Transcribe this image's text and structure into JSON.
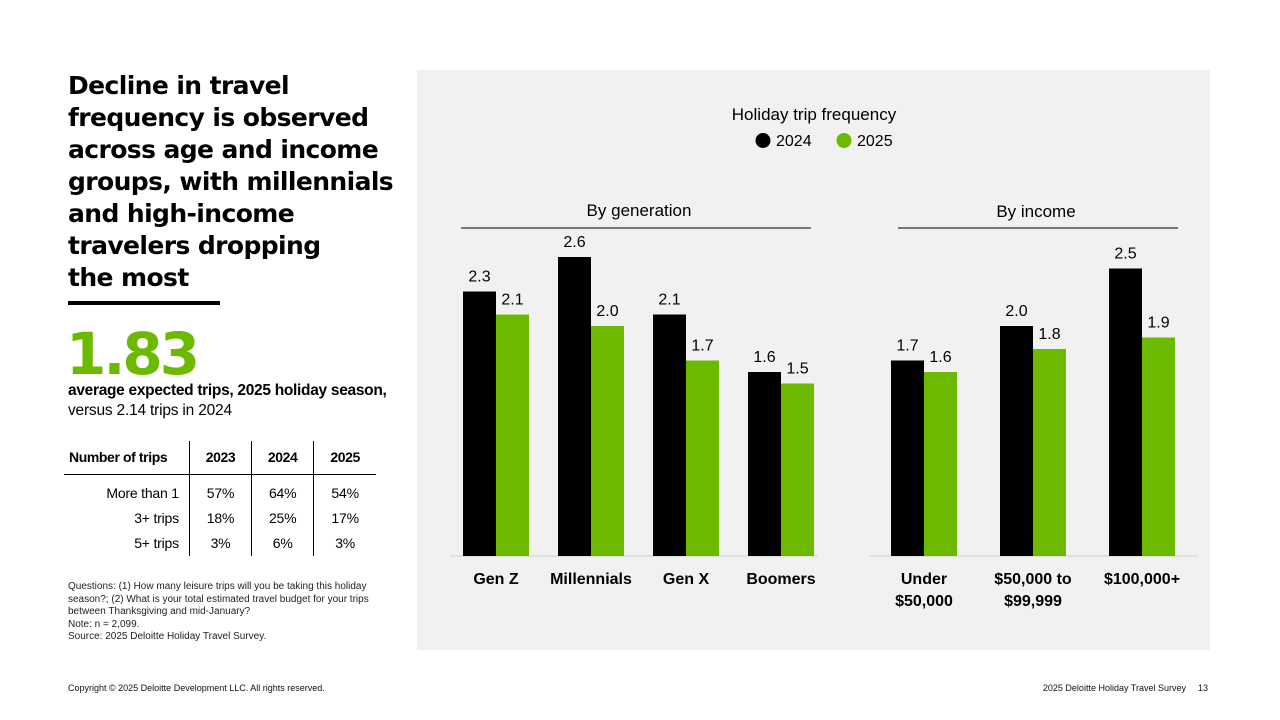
{
  "headline": {
    "lines": [
      "Decline in travel",
      "frequency is observed",
      "across age and income",
      "groups, with millennials",
      "and high-income",
      "travelers dropping",
      "the most"
    ]
  },
  "stat": {
    "value": "1.83",
    "line1": "average expected trips, 2025 holiday season,",
    "line2": "versus 2.14 trips in 2024"
  },
  "trip_table": {
    "headers": [
      "Number of trips",
      "2023",
      "2024",
      "2025"
    ],
    "rows": [
      [
        "More than 1",
        "57%",
        "64%",
        "54%"
      ],
      [
        "3+ trips",
        "18%",
        "25%",
        "17%"
      ],
      [
        "5+ trips",
        "3%",
        "6%",
        "3%"
      ]
    ]
  },
  "notes": [
    "Questions: (1) How many leisure trips will you be taking this holiday season?; (2) What is your total estimated travel budget for your trips between Thanksgiving and mid-January?",
    "Note: n = 2,099.",
    "Source: 2025 Deloitte Holiday Travel Survey."
  ],
  "footer": {
    "copyright": "Copyright © 2025 Deloitte Development LLC. All rights reserved.",
    "survey": "2025 Deloitte Holiday Travel Survey",
    "page": "13"
  },
  "colors": {
    "series_2024": "#000000",
    "series_2025": "#6cba00",
    "panel": "#f1f1f1"
  },
  "chart_data": {
    "type": "bar",
    "title": "Holiday trip frequency",
    "legend": [
      "2024",
      "2025"
    ],
    "legend_position": "top",
    "groups": [
      {
        "title": "By generation",
        "categories": [
          [
            "Gen Z"
          ],
          [
            "Millennials"
          ],
          [
            "Gen X"
          ],
          [
            "Boomers"
          ]
        ],
        "series": [
          {
            "name": "2024",
            "values": [
              2.3,
              2.6,
              2.1,
              1.6
            ]
          },
          {
            "name": "2025",
            "values": [
              2.1,
              2.0,
              1.7,
              1.5
            ]
          }
        ]
      },
      {
        "title": "By income",
        "categories": [
          [
            "Under",
            "$50,000"
          ],
          [
            "$50,000 to",
            "$99,999"
          ],
          [
            "$100,000+"
          ]
        ],
        "series": [
          {
            "name": "2024",
            "values": [
              1.7,
              2.0,
              2.5
            ]
          },
          {
            "name": "2025",
            "values": [
              1.6,
              1.8,
              1.9
            ]
          }
        ]
      }
    ],
    "ylim": [
      0,
      2.6
    ]
  }
}
